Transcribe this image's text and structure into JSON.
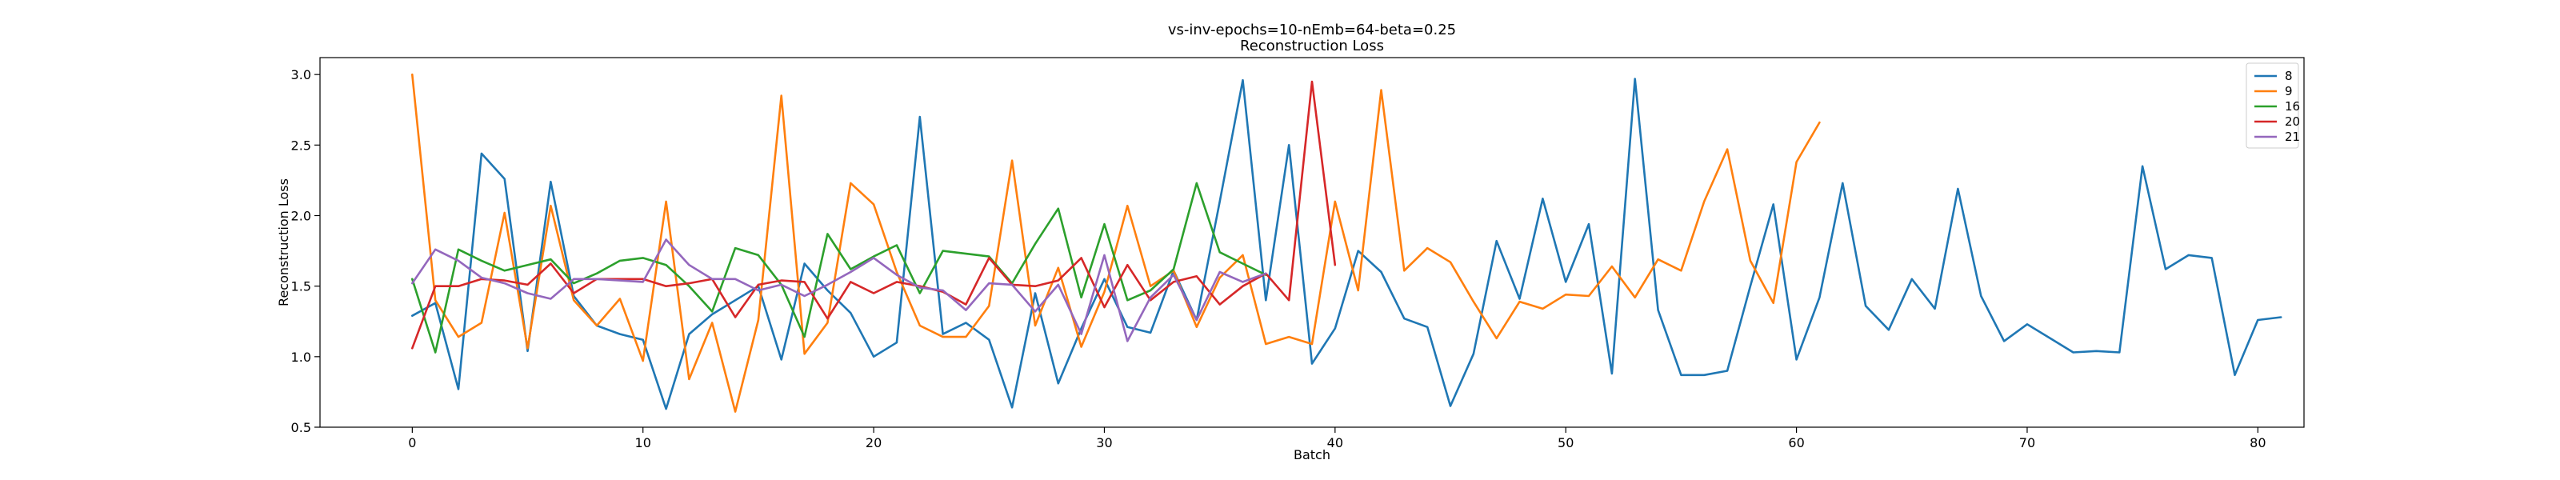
{
  "chart_data": {
    "type": "line",
    "title": "vs-inv-epochs=10-nEmb=64-beta=0.25",
    "subtitle": "Reconstruction Loss",
    "xlabel": "Batch",
    "ylabel": "Reconstruction Loss",
    "xlim": [
      -4,
      82
    ],
    "ylim": [
      0.5,
      3.12
    ],
    "xticks": [
      0,
      10,
      20,
      30,
      40,
      50,
      60,
      70,
      80
    ],
    "yticks": [
      0.5,
      1.0,
      1.5,
      2.0,
      2.5,
      3.0
    ],
    "legend_position": "top-right",
    "grid": false,
    "series": [
      {
        "name": "8",
        "color": "#1f77b4",
        "values": [
          1.29,
          1.38,
          0.77,
          2.44,
          2.26,
          1.04,
          2.24,
          1.43,
          1.22,
          1.16,
          1.12,
          0.63,
          1.16,
          1.3,
          1.4,
          1.5,
          0.98,
          1.66,
          1.47,
          1.31,
          1.0,
          1.1,
          2.7,
          1.16,
          1.24,
          1.12,
          0.64,
          1.45,
          0.81,
          1.2,
          1.55,
          1.21,
          1.17,
          1.61,
          1.26,
          2.1,
          2.96,
          1.4,
          2.5,
          0.95,
          1.2,
          1.75,
          1.6,
          1.27,
          1.21,
          0.65,
          1.02,
          1.82,
          1.41,
          2.12,
          1.53,
          1.94,
          0.88,
          2.97,
          1.33,
          0.87,
          0.87,
          0.9,
          1.5,
          2.08,
          0.98,
          1.42,
          2.23,
          1.36,
          1.19,
          1.55,
          1.34,
          2.19,
          1.43,
          1.11,
          1.23,
          1.13,
          1.03,
          1.04,
          1.03,
          2.35,
          1.62,
          1.72,
          1.7,
          0.87,
          1.26,
          1.28
        ]
      },
      {
        "name": "9",
        "color": "#ff7f0e",
        "values": [
          3.0,
          1.4,
          1.14,
          1.24,
          2.02,
          1.06,
          2.07,
          1.4,
          1.22,
          1.41,
          0.97,
          2.1,
          0.84,
          1.24,
          0.61,
          1.26,
          2.85,
          1.02,
          1.24,
          2.23,
          2.08,
          1.6,
          1.22,
          1.14,
          1.14,
          1.36,
          2.39,
          1.22,
          1.63,
          1.07,
          1.46,
          2.07,
          1.5,
          1.61,
          1.21,
          1.56,
          1.72,
          1.09,
          1.14,
          1.09,
          2.1,
          1.47,
          2.89,
          1.61,
          1.77,
          1.67,
          1.39,
          1.13,
          1.39,
          1.34,
          1.44,
          1.43,
          1.64,
          1.42,
          1.69,
          1.61,
          2.1,
          2.47,
          1.68,
          1.38,
          2.38,
          2.66
        ]
      },
      {
        "name": "16",
        "color": "#2ca02c",
        "values": [
          1.55,
          1.03,
          1.76,
          1.68,
          1.61,
          1.65,
          1.69,
          1.52,
          1.59,
          1.68,
          1.7,
          1.65,
          1.5,
          1.32,
          1.77,
          1.72,
          1.51,
          1.14,
          1.87,
          1.62,
          1.71,
          1.79,
          1.45,
          1.75,
          1.73,
          1.71,
          1.52,
          1.8,
          2.05,
          1.42,
          1.94,
          1.4,
          1.47,
          1.62,
          2.23,
          1.74,
          1.66,
          1.58
        ]
      },
      {
        "name": "20",
        "color": "#d62728",
        "values": [
          1.06,
          1.5,
          1.5,
          1.55,
          1.54,
          1.51,
          1.66,
          1.45,
          1.55,
          1.55,
          1.55,
          1.5,
          1.52,
          1.55,
          1.28,
          1.51,
          1.54,
          1.53,
          1.27,
          1.53,
          1.45,
          1.53,
          1.5,
          1.46,
          1.37,
          1.7,
          1.51,
          1.5,
          1.54,
          1.7,
          1.35,
          1.65,
          1.4,
          1.53,
          1.57,
          1.37,
          1.5,
          1.59,
          1.4,
          2.95,
          1.65
        ]
      },
      {
        "name": "21",
        "color": "#9467bd",
        "values": [
          1.52,
          1.76,
          1.68,
          1.56,
          1.52,
          1.45,
          1.41,
          1.55,
          1.55,
          1.54,
          1.53,
          1.83,
          1.65,
          1.55,
          1.55,
          1.47,
          1.51,
          1.43,
          1.51,
          1.6,
          1.7,
          1.58,
          1.49,
          1.47,
          1.33,
          1.52,
          1.51,
          1.32,
          1.51,
          1.16,
          1.72,
          1.11,
          1.42,
          1.58,
          1.26,
          1.6,
          1.53,
          1.59
        ]
      }
    ]
  }
}
